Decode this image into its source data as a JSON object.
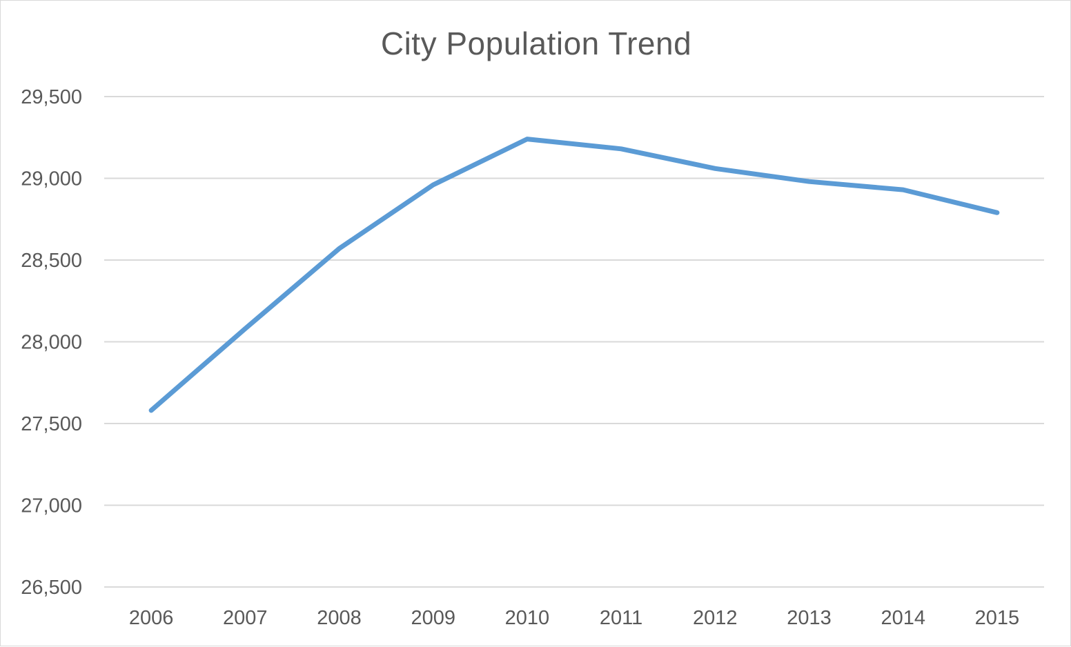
{
  "chart_data": {
    "type": "line",
    "title": "City Population Trend",
    "xlabel": "",
    "ylabel": "",
    "categories": [
      "2006",
      "2007",
      "2008",
      "2009",
      "2010",
      "2011",
      "2012",
      "2013",
      "2014",
      "2015"
    ],
    "series": [
      {
        "values": [
          27580,
          28080,
          28570,
          28960,
          29240,
          29180,
          29060,
          28980,
          28930,
          28790
        ],
        "color": "#5b9bd5"
      }
    ],
    "ylim": [
      26500,
      29500
    ],
    "yticks": [
      26500,
      27000,
      27500,
      28000,
      28500,
      29000,
      29500
    ],
    "ytick_labels": [
      "26,500",
      "27,000",
      "27,500",
      "28,000",
      "28,500",
      "29,000",
      "29,500"
    ],
    "grid": true,
    "legend": "none",
    "colors": {
      "line": "#5b9bd5",
      "grid": "#d9d9d9",
      "text": "#595959"
    }
  }
}
